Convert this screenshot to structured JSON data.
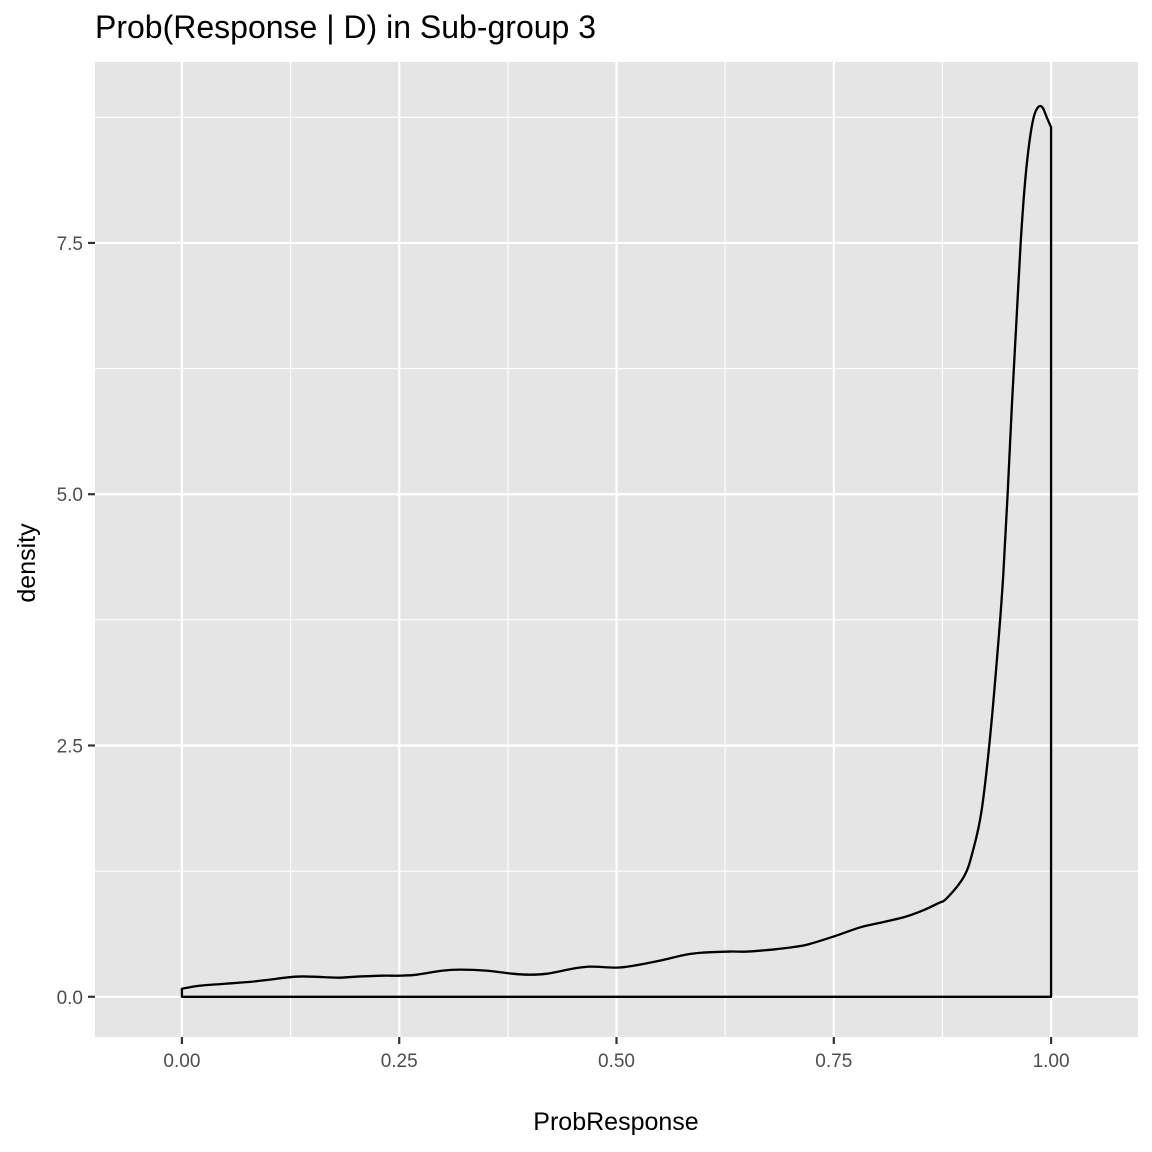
{
  "chart_data": {
    "type": "area",
    "title": "Prob(Response | D) in Sub-group 3",
    "xlabel": "ProbResponse",
    "ylabel": "density",
    "xlim": [
      -0.1,
      1.1
    ],
    "ylim": [
      -0.4,
      9.3
    ],
    "x_ticks": [
      {
        "value": 0.0,
        "label": "0.00"
      },
      {
        "value": 0.25,
        "label": "0.25"
      },
      {
        "value": 0.5,
        "label": "0.50"
      },
      {
        "value": 0.75,
        "label": "0.75"
      },
      {
        "value": 1.0,
        "label": "1.00"
      }
    ],
    "y_ticks": [
      {
        "value": 0.0,
        "label": "0.0"
      },
      {
        "value": 2.5,
        "label": "2.5"
      },
      {
        "value": 5.0,
        "label": "5.0"
      },
      {
        "value": 7.5,
        "label": "7.5"
      }
    ],
    "grid": true,
    "colors": {
      "panel": "#e5e5e5",
      "grid": "#ffffff",
      "line": "#000000",
      "text": "#000000",
      "tick_text": "#4d4d4d"
    },
    "series": [
      {
        "x": [
          0.0,
          0.02,
          0.05,
          0.08,
          0.1,
          0.13,
          0.15,
          0.18,
          0.2,
          0.23,
          0.25,
          0.27,
          0.3,
          0.32,
          0.35,
          0.38,
          0.4,
          0.42,
          0.45,
          0.47,
          0.5,
          0.52,
          0.55,
          0.58,
          0.6,
          0.63,
          0.65,
          0.68,
          0.7,
          0.72,
          0.75,
          0.78,
          0.8,
          0.83,
          0.85,
          0.87,
          0.88,
          0.9,
          0.91,
          0.92,
          0.93,
          0.94,
          0.945,
          0.95,
          0.955,
          0.96,
          0.965,
          0.97,
          0.975,
          0.98,
          0.985,
          0.99,
          0.995,
          1.0
        ],
        "y": [
          0.08,
          0.11,
          0.13,
          0.15,
          0.17,
          0.2,
          0.2,
          0.19,
          0.2,
          0.21,
          0.21,
          0.22,
          0.26,
          0.27,
          0.26,
          0.23,
          0.22,
          0.23,
          0.28,
          0.3,
          0.29,
          0.31,
          0.36,
          0.42,
          0.44,
          0.45,
          0.45,
          0.47,
          0.49,
          0.52,
          0.6,
          0.69,
          0.73,
          0.79,
          0.85,
          0.93,
          0.98,
          1.2,
          1.45,
          1.85,
          2.6,
          3.6,
          4.2,
          5.0,
          5.9,
          6.7,
          7.5,
          8.1,
          8.5,
          8.75,
          8.85,
          8.85,
          8.75,
          8.65
        ]
      }
    ]
  }
}
